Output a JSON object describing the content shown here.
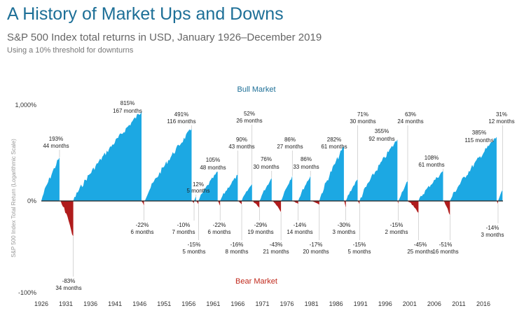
{
  "header": {
    "title": "A History of Market Ups and Downs",
    "subtitle": "S&P 500 Index total returns in USD, January 1926–December 2019",
    "note": "Using a 10% threshold for downturns"
  },
  "colors": {
    "bull": "#1ca8e3",
    "bear": "#b01c1c",
    "title": "#1d6f97",
    "bull_label": "#1d6f97",
    "bear_label": "#c0291c"
  },
  "chart_data": {
    "type": "area",
    "ylabel": "S&P 500 Index Total Return (Logarithmic Scale)",
    "ylim": [
      -100,
      1000
    ],
    "y_scale": "log",
    "y_tick_labels": [
      "1,000%",
      "0%",
      "-100%"
    ],
    "x_tick_labels": [
      "1926",
      "1931",
      "1936",
      "1941",
      "1946",
      "1951",
      "1956",
      "1961",
      "1966",
      "1971",
      "1976",
      "1981",
      "1986",
      "1991",
      "1996",
      "2001",
      "2006",
      "2011",
      "2016"
    ],
    "bull_label": "Bull Market",
    "bear_label": "Bear Market",
    "bull_markets": [
      {
        "start": 1926.0,
        "end": 1929.7,
        "return": "193%",
        "duration": "44 months",
        "value": 193
      },
      {
        "start": 1932.5,
        "end": 1946.4,
        "return": "815%",
        "duration": "167 months",
        "value": 815
      },
      {
        "start": 1946.9,
        "end": 1956.6,
        "return": "491%",
        "duration": "116 months",
        "value": 491
      },
      {
        "start": 1957.1,
        "end": 1957.5,
        "return": "12%",
        "duration": "5 months",
        "value": 12
      },
      {
        "start": 1958.0,
        "end": 1961.9,
        "return": "105%",
        "duration": "48 months",
        "value": 105
      },
      {
        "start": 1962.4,
        "end": 1966.0,
        "return": "90%",
        "duration": "43 months",
        "value": 90
      },
      {
        "start": 1966.8,
        "end": 1968.9,
        "return": "52%",
        "duration": "26 months",
        "value": 52
      },
      {
        "start": 1970.4,
        "end": 1972.9,
        "return": "76%",
        "duration": "30 months",
        "value": 76
      },
      {
        "start": 1974.8,
        "end": 1977.1,
        "return": "86%",
        "duration": "27 months",
        "value": 86
      },
      {
        "start": 1978.3,
        "end": 1980.8,
        "return": "86%",
        "duration": "33 months",
        "value": 86
      },
      {
        "start": 1982.6,
        "end": 1987.6,
        "return": "282%",
        "duration": "61 months",
        "value": 282
      },
      {
        "start": 1988.0,
        "end": 1990.4,
        "return": "71%",
        "duration": "30 months",
        "value": 71
      },
      {
        "start": 1990.8,
        "end": 1998.5,
        "return": "355%",
        "duration": "92 months",
        "value": 355
      },
      {
        "start": 1998.7,
        "end": 2000.6,
        "return": "63%",
        "duration": "24 months",
        "value": 63
      },
      {
        "start": 2002.8,
        "end": 2007.8,
        "return": "108%",
        "duration": "61 months",
        "value": 108
      },
      {
        "start": 2009.2,
        "end": 2018.7,
        "return": "385%",
        "duration": "115 months",
        "value": 385
      },
      {
        "start": 2019.0,
        "end": 2019.9,
        "return": "31%",
        "duration": "12 months",
        "value": 31
      }
    ],
    "bear_markets": [
      {
        "start": 1929.7,
        "end": 1932.5,
        "return": "-83%",
        "duration": "34 months",
        "value": -83
      },
      {
        "start": 1946.4,
        "end": 1946.9,
        "return": "-22%",
        "duration": "6 months",
        "value": -22
      },
      {
        "start": 1956.6,
        "end": 1957.1,
        "return": "-10%",
        "duration": "7 months",
        "value": -10
      },
      {
        "start": 1957.5,
        "end": 1958.0,
        "return": "-15%",
        "duration": "5 months",
        "value": -15
      },
      {
        "start": 1961.9,
        "end": 1962.4,
        "return": "-22%",
        "duration": "6 months",
        "value": -22
      },
      {
        "start": 1966.0,
        "end": 1966.8,
        "return": "-16%",
        "duration": "8 months",
        "value": -16
      },
      {
        "start": 1968.9,
        "end": 1970.4,
        "return": "-29%",
        "duration": "19 months",
        "value": -29
      },
      {
        "start": 1972.9,
        "end": 1974.8,
        "return": "-43%",
        "duration": "21 months",
        "value": -43
      },
      {
        "start": 1977.1,
        "end": 1978.3,
        "return": "-14%",
        "duration": "14 months",
        "value": -14
      },
      {
        "start": 1980.8,
        "end": 1982.6,
        "return": "-17%",
        "duration": "20 months",
        "value": -17
      },
      {
        "start": 1987.6,
        "end": 1988.0,
        "return": "-30%",
        "duration": "3 months",
        "value": -30
      },
      {
        "start": 1990.4,
        "end": 1990.8,
        "return": "-15%",
        "duration": "5 months",
        "value": -15
      },
      {
        "start": 1998.5,
        "end": 1998.7,
        "return": "-15%",
        "duration": "2 months",
        "value": -15
      },
      {
        "start": 2000.6,
        "end": 2002.8,
        "return": "-45%",
        "duration": "25 months",
        "value": -45
      },
      {
        "start": 2007.8,
        "end": 2009.2,
        "return": "-51%",
        "duration": "16 months",
        "value": -51
      },
      {
        "start": 2018.7,
        "end": 2019.0,
        "return": "-14%",
        "duration": "3 months",
        "value": -14
      }
    ]
  }
}
